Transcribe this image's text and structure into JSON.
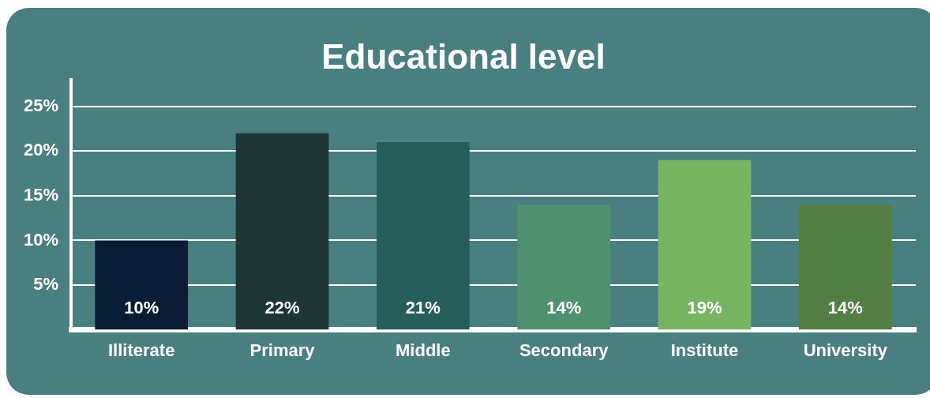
{
  "chart_data": {
    "type": "bar",
    "title": "Educational level",
    "categories": [
      "Illiterate",
      "Primary",
      "Middle",
      "Secondary",
      "Institute",
      "University"
    ],
    "values": [
      10,
      22,
      21,
      14,
      19,
      14
    ],
    "colors": [
      "#0b1d35",
      "#1d3535",
      "#265f5a",
      "#4f9070",
      "#78b563",
      "#537f45"
    ],
    "value_labels": [
      "10%",
      "22%",
      "21%",
      "14%",
      "19%",
      "14%"
    ],
    "ylim": [
      0,
      28
    ],
    "yticks": [
      {
        "value": 5,
        "label": "5%"
      },
      {
        "value": 10,
        "label": "10%"
      },
      {
        "value": 15,
        "label": "15%"
      },
      {
        "value": 20,
        "label": "20%"
      },
      {
        "value": 25,
        "label": "25%"
      }
    ],
    "grid": "y",
    "legend": false
  }
}
